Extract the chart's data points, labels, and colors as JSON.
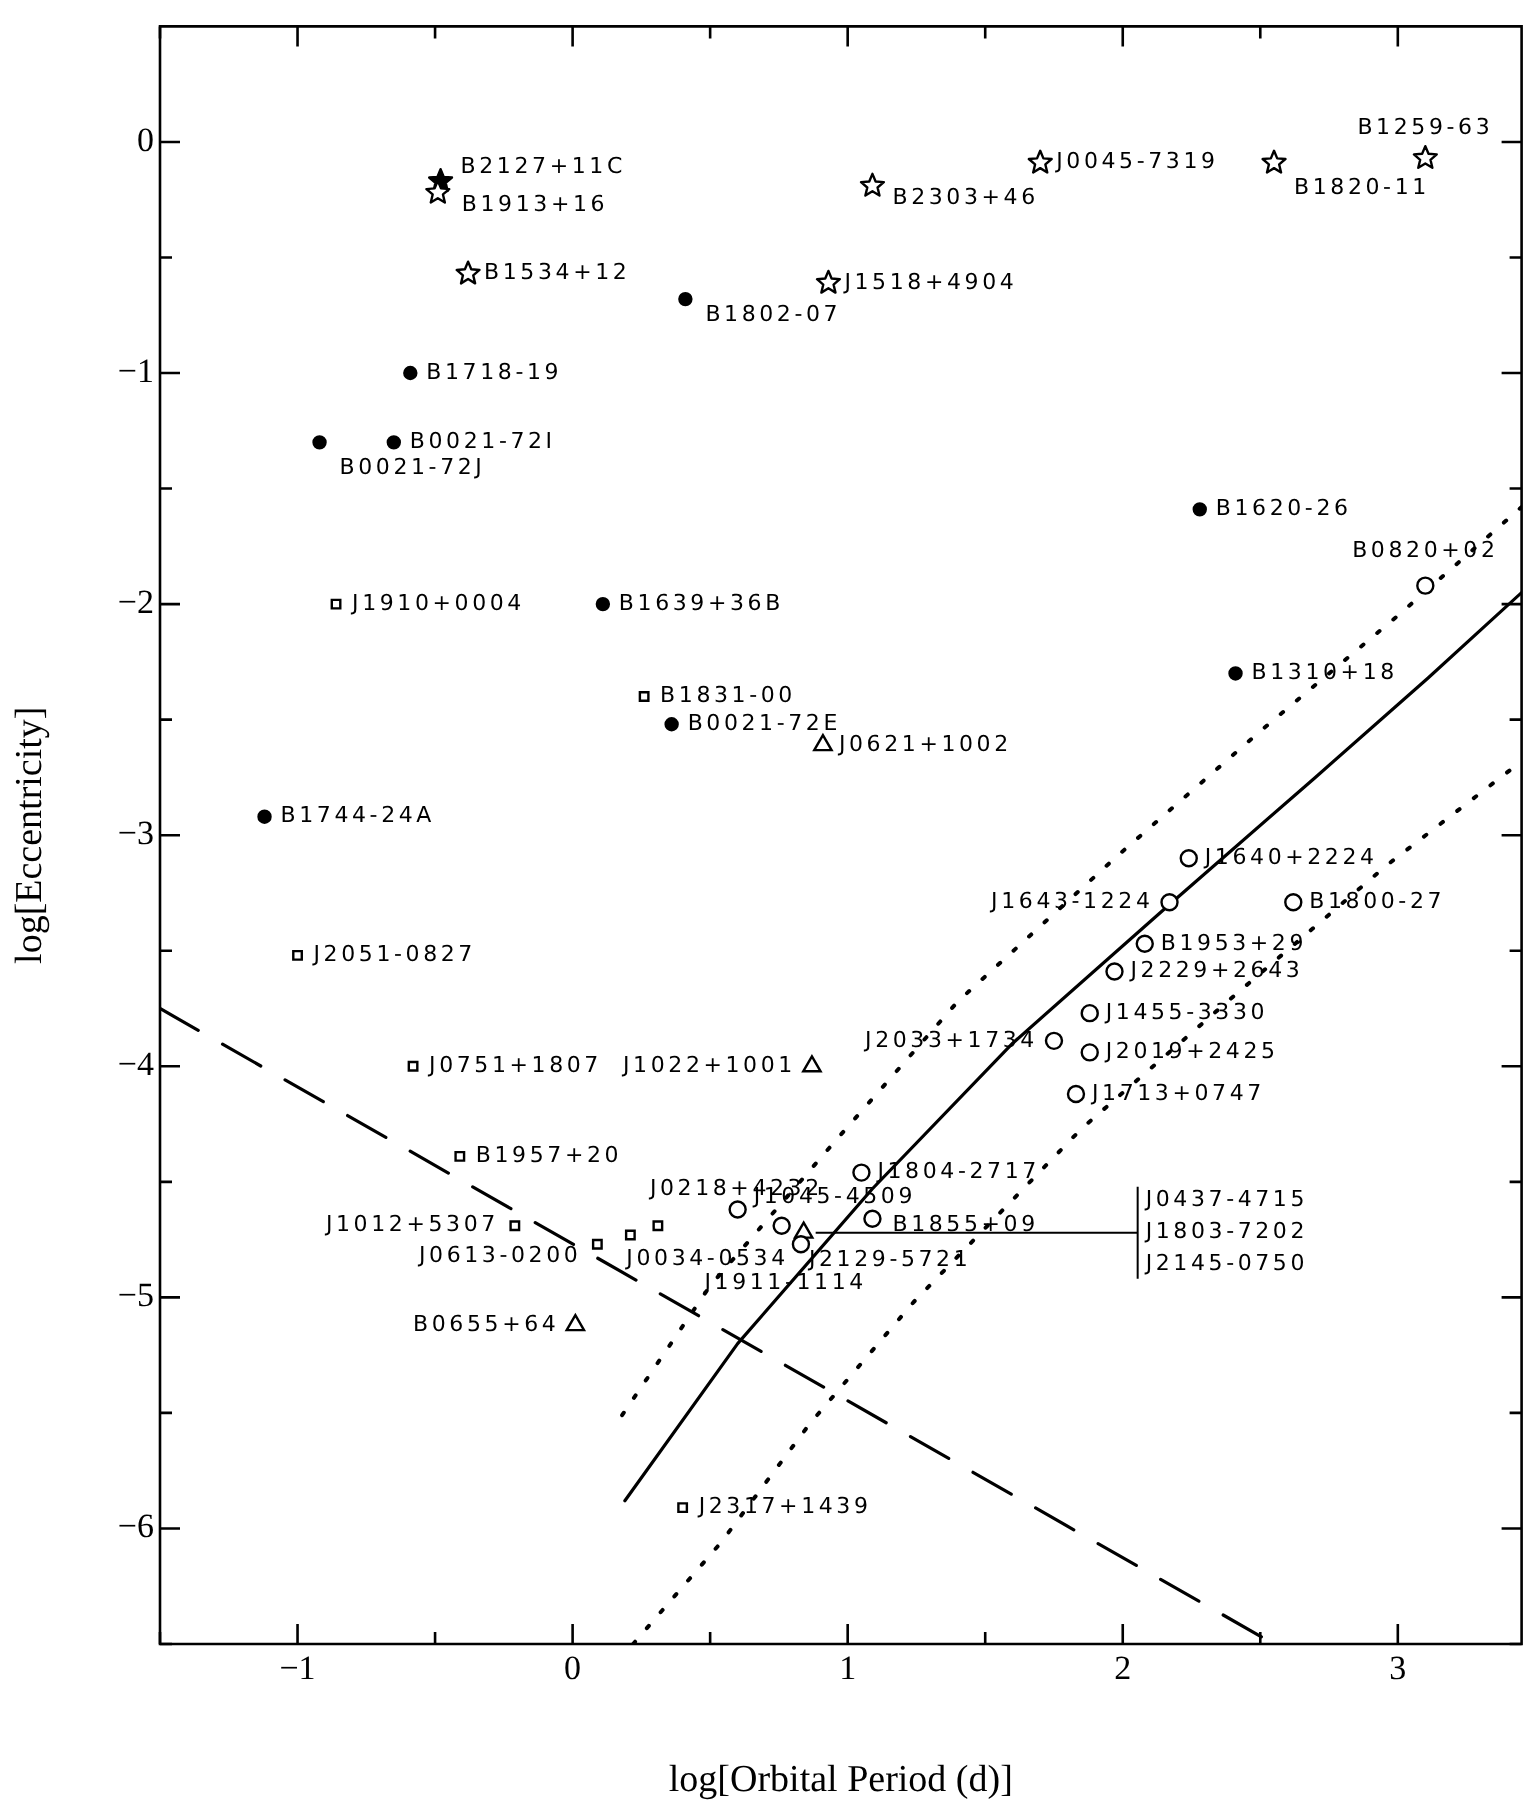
{
  "chart_data": {
    "type": "scatter",
    "xlabel": "log[Orbital Period (d)]",
    "ylabel": "log[Eccentricity]",
    "xlim": [
      -1.5,
      3.45
    ],
    "xticks": [
      {
        "value": -1.5,
        "label": null
      },
      -1,
      {
        "value": -0.5,
        "label": null
      },
      0,
      {
        "value": 0.5,
        "label": null
      },
      1,
      {
        "value": 1.5,
        "label": null
      },
      2,
      {
        "value": 2.5,
        "label": null
      },
      3
    ],
    "ylim": [
      -6.5,
      0.5
    ],
    "yticks": [
      {
        "value": -6.5,
        "label": null
      },
      -6,
      {
        "value": -5.5,
        "label": null
      },
      -5,
      {
        "value": -4.5,
        "label": null
      },
      -4,
      {
        "value": -3.5,
        "label": null
      },
      -3,
      {
        "value": -2.5,
        "label": null
      },
      -2,
      {
        "value": -1.5,
        "label": null
      },
      -1,
      {
        "value": -0.5,
        "label": null
      },
      0
    ],
    "grid": false,
    "legend": false,
    "series": [
      {
        "marker": "star",
        "color": "#000000",
        "x": [
          -0.49,
          -0.38,
          0.93,
          1.09,
          1.7,
          2.55,
          3.1
        ],
        "values": [
          -0.22,
          -0.57,
          -0.61,
          -0.19,
          -0.09,
          -0.09,
          -0.07
        ]
      },
      {
        "marker": "star",
        "color": "#000000",
        "x": [
          -0.48
        ],
        "values": [
          -0.17
        ]
      },
      {
        "marker": "circle",
        "color": "#000000",
        "x": [
          0.41,
          -0.59,
          -0.65,
          -0.92,
          0.11,
          2.28,
          2.41,
          0.36,
          -1.12
        ],
        "values": [
          -0.68,
          -1.0,
          -1.3,
          -1.3,
          -2.0,
          -1.59,
          -2.3,
          -2.52,
          -2.92
        ]
      },
      {
        "marker": "circle",
        "color": "#000000",
        "x": [
          3.1,
          2.24,
          2.17,
          2.62,
          2.08,
          1.97,
          1.88,
          1.75,
          1.88,
          1.83,
          1.05,
          1.09,
          0.6,
          0.76,
          0.83
        ],
        "values": [
          -1.92,
          -3.1,
          -3.29,
          -3.29,
          -3.47,
          -3.59,
          -3.77,
          -3.89,
          -3.94,
          -4.12,
          -4.46,
          -4.66,
          -4.62,
          -4.69,
          -4.77
        ]
      },
      {
        "marker": "square",
        "color": "#000000",
        "x": [
          -0.86,
          0.26,
          -1.0,
          -0.58,
          -0.41,
          -0.21,
          0.09,
          0.21,
          0.31,
          0.4
        ],
        "values": [
          -2.0,
          -2.4,
          -3.52,
          -4.0,
          -4.39,
          -4.69,
          -4.77,
          -4.73,
          -4.69,
          -5.91
        ]
      },
      {
        "marker": "triangle",
        "color": "#000000",
        "x": [
          0.91,
          0.87,
          0.01,
          0.84
        ],
        "values": [
          -2.61,
          -4.0,
          -5.12,
          -4.72
        ]
      },
      {
        "type": "line",
        "marker": "none",
        "line_style": "solid",
        "color": "#000000",
        "x": [
          0.19,
          0.6,
          1.09,
          1.6,
          2.17,
          2.7,
          3.11,
          3.45
        ],
        "values": [
          -5.88,
          -5.2,
          -4.53,
          -3.9,
          -3.3,
          -2.75,
          -2.32,
          -1.95
        ]
      },
      {
        "type": "line",
        "marker": "none",
        "line_style": "dotted",
        "color": "#000000",
        "x": [
          0.18,
          0.5,
          0.95,
          1.4,
          1.98,
          2.5,
          3.0,
          3.45
        ],
        "values": [
          -5.51,
          -4.95,
          -4.33,
          -3.72,
          -3.09,
          -2.55,
          -2.05,
          -1.58
        ]
      },
      {
        "type": "line",
        "marker": "none",
        "line_style": "dotted",
        "color": "#000000",
        "x": [
          0.22,
          0.54,
          0.86,
          1.24,
          1.85,
          2.4,
          2.96,
          3.45
        ],
        "values": [
          -6.5,
          -6.06,
          -5.55,
          -5.02,
          -4.27,
          -3.7,
          -3.13,
          -2.68
        ]
      },
      {
        "type": "line",
        "marker": "none",
        "line_style": "dashed",
        "color": "#000000",
        "x": [
          -1.5,
          2.55
        ],
        "values": [
          -3.75,
          -6.5
        ]
      }
    ],
    "annotations": [
      {
        "text": "B2127+11C",
        "x": -0.48,
        "y": -0.17
      },
      {
        "text": "B1913+16",
        "x": -0.49,
        "y": -0.22
      },
      {
        "text": "B1534+12",
        "x": -0.38,
        "y": -0.57
      },
      {
        "text": "J1518+4904",
        "x": 0.93,
        "y": -0.61
      },
      {
        "text": "B2303+46",
        "x": 1.09,
        "y": -0.19
      },
      {
        "text": "J0045-7319",
        "x": 1.7,
        "y": -0.09
      },
      {
        "text": "B1820-11",
        "x": 2.55,
        "y": -0.09
      },
      {
        "text": "B1259-63",
        "x": 3.1,
        "y": -0.07
      },
      {
        "text": "B1802-07",
        "x": 0.41,
        "y": -0.68
      },
      {
        "text": "B1718-19",
        "x": -0.59,
        "y": -1.0
      },
      {
        "text": "B0021-72I",
        "x": -0.65,
        "y": -1.3
      },
      {
        "text": "B0021-72J",
        "x": -0.92,
        "y": -1.3
      },
      {
        "text": "B1639+36B",
        "x": 0.11,
        "y": -2.0
      },
      {
        "text": "B1620-26",
        "x": 2.28,
        "y": -1.59
      },
      {
        "text": "B1310+18",
        "x": 2.41,
        "y": -2.3
      },
      {
        "text": "B0021-72E",
        "x": 0.36,
        "y": -2.52
      },
      {
        "text": "B1744-24A",
        "x": -1.12,
        "y": -2.92
      },
      {
        "text": "B0820+02",
        "x": 3.1,
        "y": -1.92
      },
      {
        "text": "J1640+2224",
        "x": 2.24,
        "y": -3.1
      },
      {
        "text": "J1643-1224",
        "x": 2.17,
        "y": -3.29
      },
      {
        "text": "B1800-27",
        "x": 2.62,
        "y": -3.29
      },
      {
        "text": "B1953+29",
        "x": 2.08,
        "y": -3.47
      },
      {
        "text": "J2229+2643",
        "x": 1.97,
        "y": -3.59
      },
      {
        "text": "J1455-3330",
        "x": 1.88,
        "y": -3.77
      },
      {
        "text": "J2033+1734",
        "x": 1.75,
        "y": -3.89
      },
      {
        "text": "J2019+2425",
        "x": 1.88,
        "y": -3.94
      },
      {
        "text": "J1713+0747",
        "x": 1.83,
        "y": -4.12
      },
      {
        "text": "J1804-2717",
        "x": 1.05,
        "y": -4.46
      },
      {
        "text": "B1855+09",
        "x": 1.09,
        "y": -4.66
      },
      {
        "text": "J1045-4509",
        "x": 0.6,
        "y": -4.62
      },
      {
        "text": "J1911-1114",
        "x": 0.76,
        "y": -4.69
      },
      {
        "text": "J2129-5721",
        "x": 0.83,
        "y": -4.77
      },
      {
        "text": "J1910+0004",
        "x": -0.86,
        "y": -2.0
      },
      {
        "text": "B1831-00",
        "x": 0.26,
        "y": -2.4
      },
      {
        "text": "J2051-0827",
        "x": -1.0,
        "y": -3.52
      },
      {
        "text": "J0751+1807",
        "x": -0.58,
        "y": -4.0
      },
      {
        "text": "B1957+20",
        "x": -0.41,
        "y": -4.39
      },
      {
        "text": "J1012+5307",
        "x": -0.21,
        "y": -4.69
      },
      {
        "text": "J0613-0200",
        "x": 0.09,
        "y": -4.77
      },
      {
        "text": "J0034-0534",
        "x": 0.21,
        "y": -4.73
      },
      {
        "text": "J0218+4232",
        "x": 0.31,
        "y": -4.69
      },
      {
        "text": "J2317+1439",
        "x": 0.4,
        "y": -5.91
      },
      {
        "text": "J0621+1002",
        "x": 0.91,
        "y": -2.61
      },
      {
        "text": "J1022+1001",
        "x": 0.87,
        "y": -4.0
      },
      {
        "text": "B0655+64",
        "x": 0.01,
        "y": -5.12
      },
      {
        "text": "J0437-4715",
        "x": 0.84,
        "y": -4.72
      },
      {
        "text": "J1803-7202",
        "x": 0.84,
        "y": -4.72
      },
      {
        "text": "J2145-0750",
        "x": 0.84,
        "y": -4.72
      }
    ]
  }
}
